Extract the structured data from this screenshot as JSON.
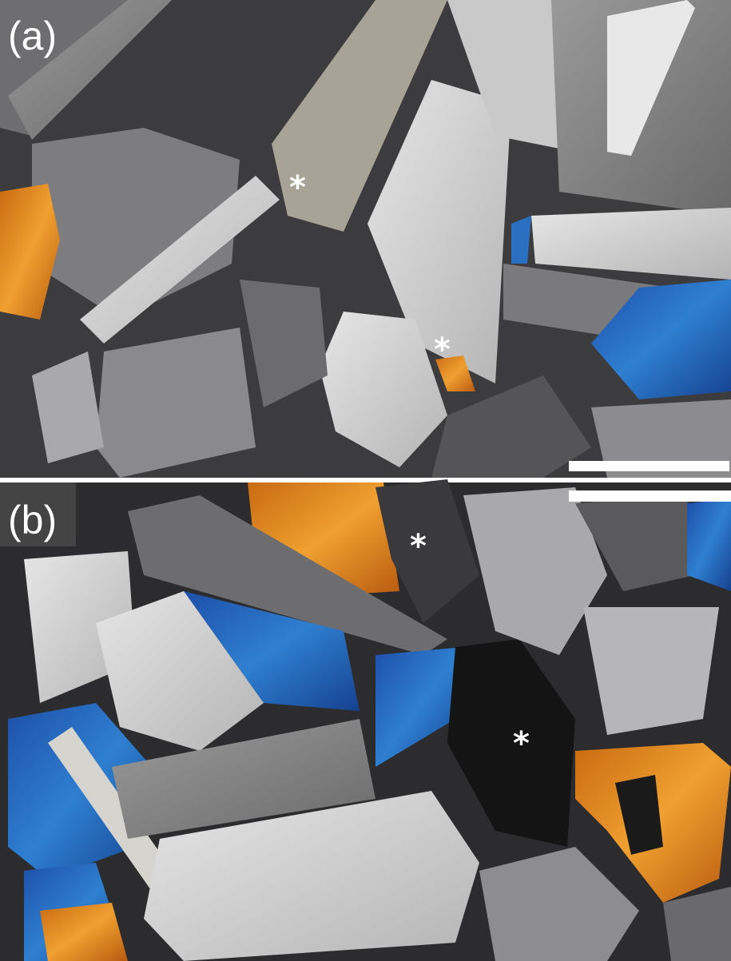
{
  "panels": [
    {
      "label": "(a)",
      "markers": [
        "*",
        "*"
      ]
    },
    {
      "label": "(b)",
      "markers": [
        "*",
        "*"
      ]
    }
  ]
}
